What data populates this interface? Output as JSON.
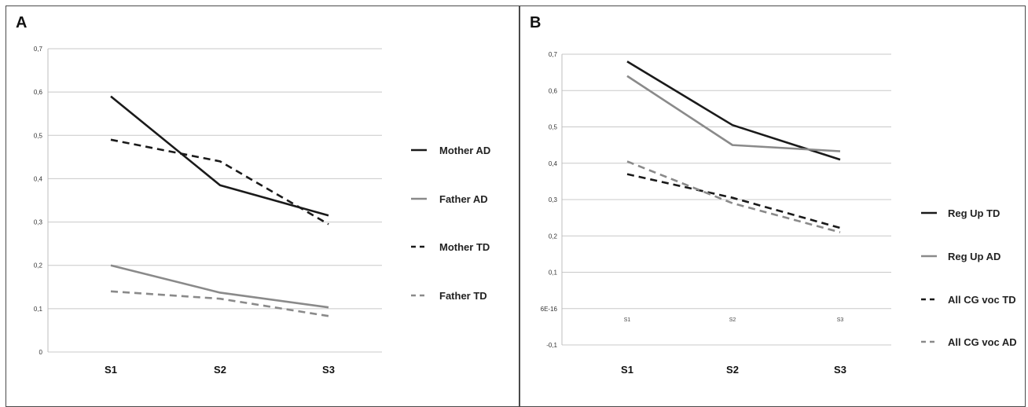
{
  "panels": [
    {
      "letter": "A",
      "y_tick_labels": [
        "0",
        "0,1",
        "0,2",
        "0,3",
        "0,4",
        "0,5",
        "0,6",
        "0,7"
      ],
      "x_tick_labels": [
        "S1",
        "S2",
        "S3"
      ]
    },
    {
      "letter": "B",
      "y_tick_labels": [
        "-0,1",
        "6E-16",
        "0,1",
        "0,2",
        "0,3",
        "0,4",
        "0,5",
        "0,6",
        "0,7"
      ],
      "x_tick_labels": [
        "S1",
        "S2",
        "S3"
      ],
      "axis_tick_labels": [
        "S1",
        "S2",
        "S3"
      ]
    }
  ],
  "chart_data": [
    {
      "type": "line",
      "panel": "A",
      "categories": [
        "S1",
        "S2",
        "S3"
      ],
      "ylim": [
        0,
        0.7
      ],
      "yticks": [
        0,
        0.1,
        0.2,
        0.3,
        0.4,
        0.5,
        0.6,
        0.7
      ],
      "grid": true,
      "legend_position": "right",
      "series": [
        {
          "name": "Mother AD",
          "values": [
            0.59,
            0.385,
            0.315
          ],
          "color": "#1a1a1a",
          "dash": "solid"
        },
        {
          "name": "Father AD",
          "values": [
            0.2,
            0.137,
            0.103
          ],
          "color": "#8a8a8a",
          "dash": "solid"
        },
        {
          "name": "Mother TD",
          "values": [
            0.49,
            0.44,
            0.295
          ],
          "color": "#1a1a1a",
          "dash": "dashed"
        },
        {
          "name": "Father TD",
          "values": [
            0.14,
            0.123,
            0.083
          ],
          "color": "#8a8a8a",
          "dash": "dashed"
        }
      ]
    },
    {
      "type": "line",
      "panel": "B",
      "categories": [
        "S1",
        "S2",
        "S3"
      ],
      "ylim": [
        -0.1,
        0.7
      ],
      "yticks": [
        -0.1,
        0,
        0.1,
        0.2,
        0.3,
        0.4,
        0.5,
        0.6,
        0.7
      ],
      "grid": true,
      "legend_position": "right",
      "series": [
        {
          "name": "Reg Up TD",
          "values": [
            0.68,
            0.505,
            0.41
          ],
          "color": "#1a1a1a",
          "dash": "solid"
        },
        {
          "name": "Reg Up AD",
          "values": [
            0.64,
            0.45,
            0.433
          ],
          "color": "#8a8a8a",
          "dash": "solid"
        },
        {
          "name": "All CG voc TD",
          "values": [
            0.37,
            0.305,
            0.222
          ],
          "color": "#1a1a1a",
          "dash": "dashed"
        },
        {
          "name": "All CG voc AD",
          "values": [
            0.405,
            0.29,
            0.21
          ],
          "color": "#8a8a8a",
          "dash": "dashed"
        }
      ]
    }
  ]
}
